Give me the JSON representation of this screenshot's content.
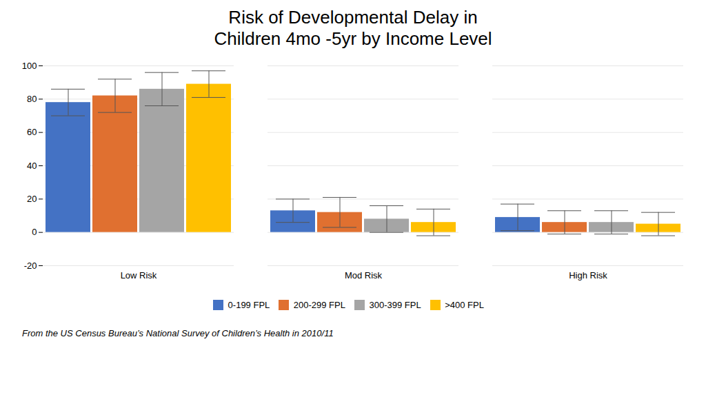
{
  "chart_data": {
    "type": "bar",
    "title": "Risk of Developmental Delay in\nChildren 4mo -5yr by Income Level",
    "categories": [
      "Low Risk",
      "Mod Risk",
      "High Risk"
    ],
    "series": [
      {
        "name": "0-199 FPL",
        "color": "#4472C4",
        "values": [
          78,
          13,
          9
        ],
        "errors": [
          8,
          7,
          8
        ]
      },
      {
        "name": "200-299 FPL",
        "color": "#E07030",
        "values": [
          82,
          12,
          6
        ],
        "errors": [
          10,
          9,
          7
        ]
      },
      {
        "name": "300-399 FPL",
        "color": "#A5A5A5",
        "values": [
          86,
          8,
          6
        ],
        "errors": [
          10,
          8,
          7
        ]
      },
      {
        "name": ">400 FPL",
        "color": "#FFC000",
        "values": [
          89,
          6,
          5
        ],
        "errors": [
          8,
          8,
          7
        ]
      }
    ],
    "ylim": [
      -20,
      100
    ],
    "yticks": [
      -20,
      0,
      20,
      40,
      60,
      80,
      100
    ],
    "grid": true,
    "legend": "bottom",
    "annotations": [
      "From the US Census Bureau’s National Survey of Children’s Health in 2010/11"
    ]
  }
}
